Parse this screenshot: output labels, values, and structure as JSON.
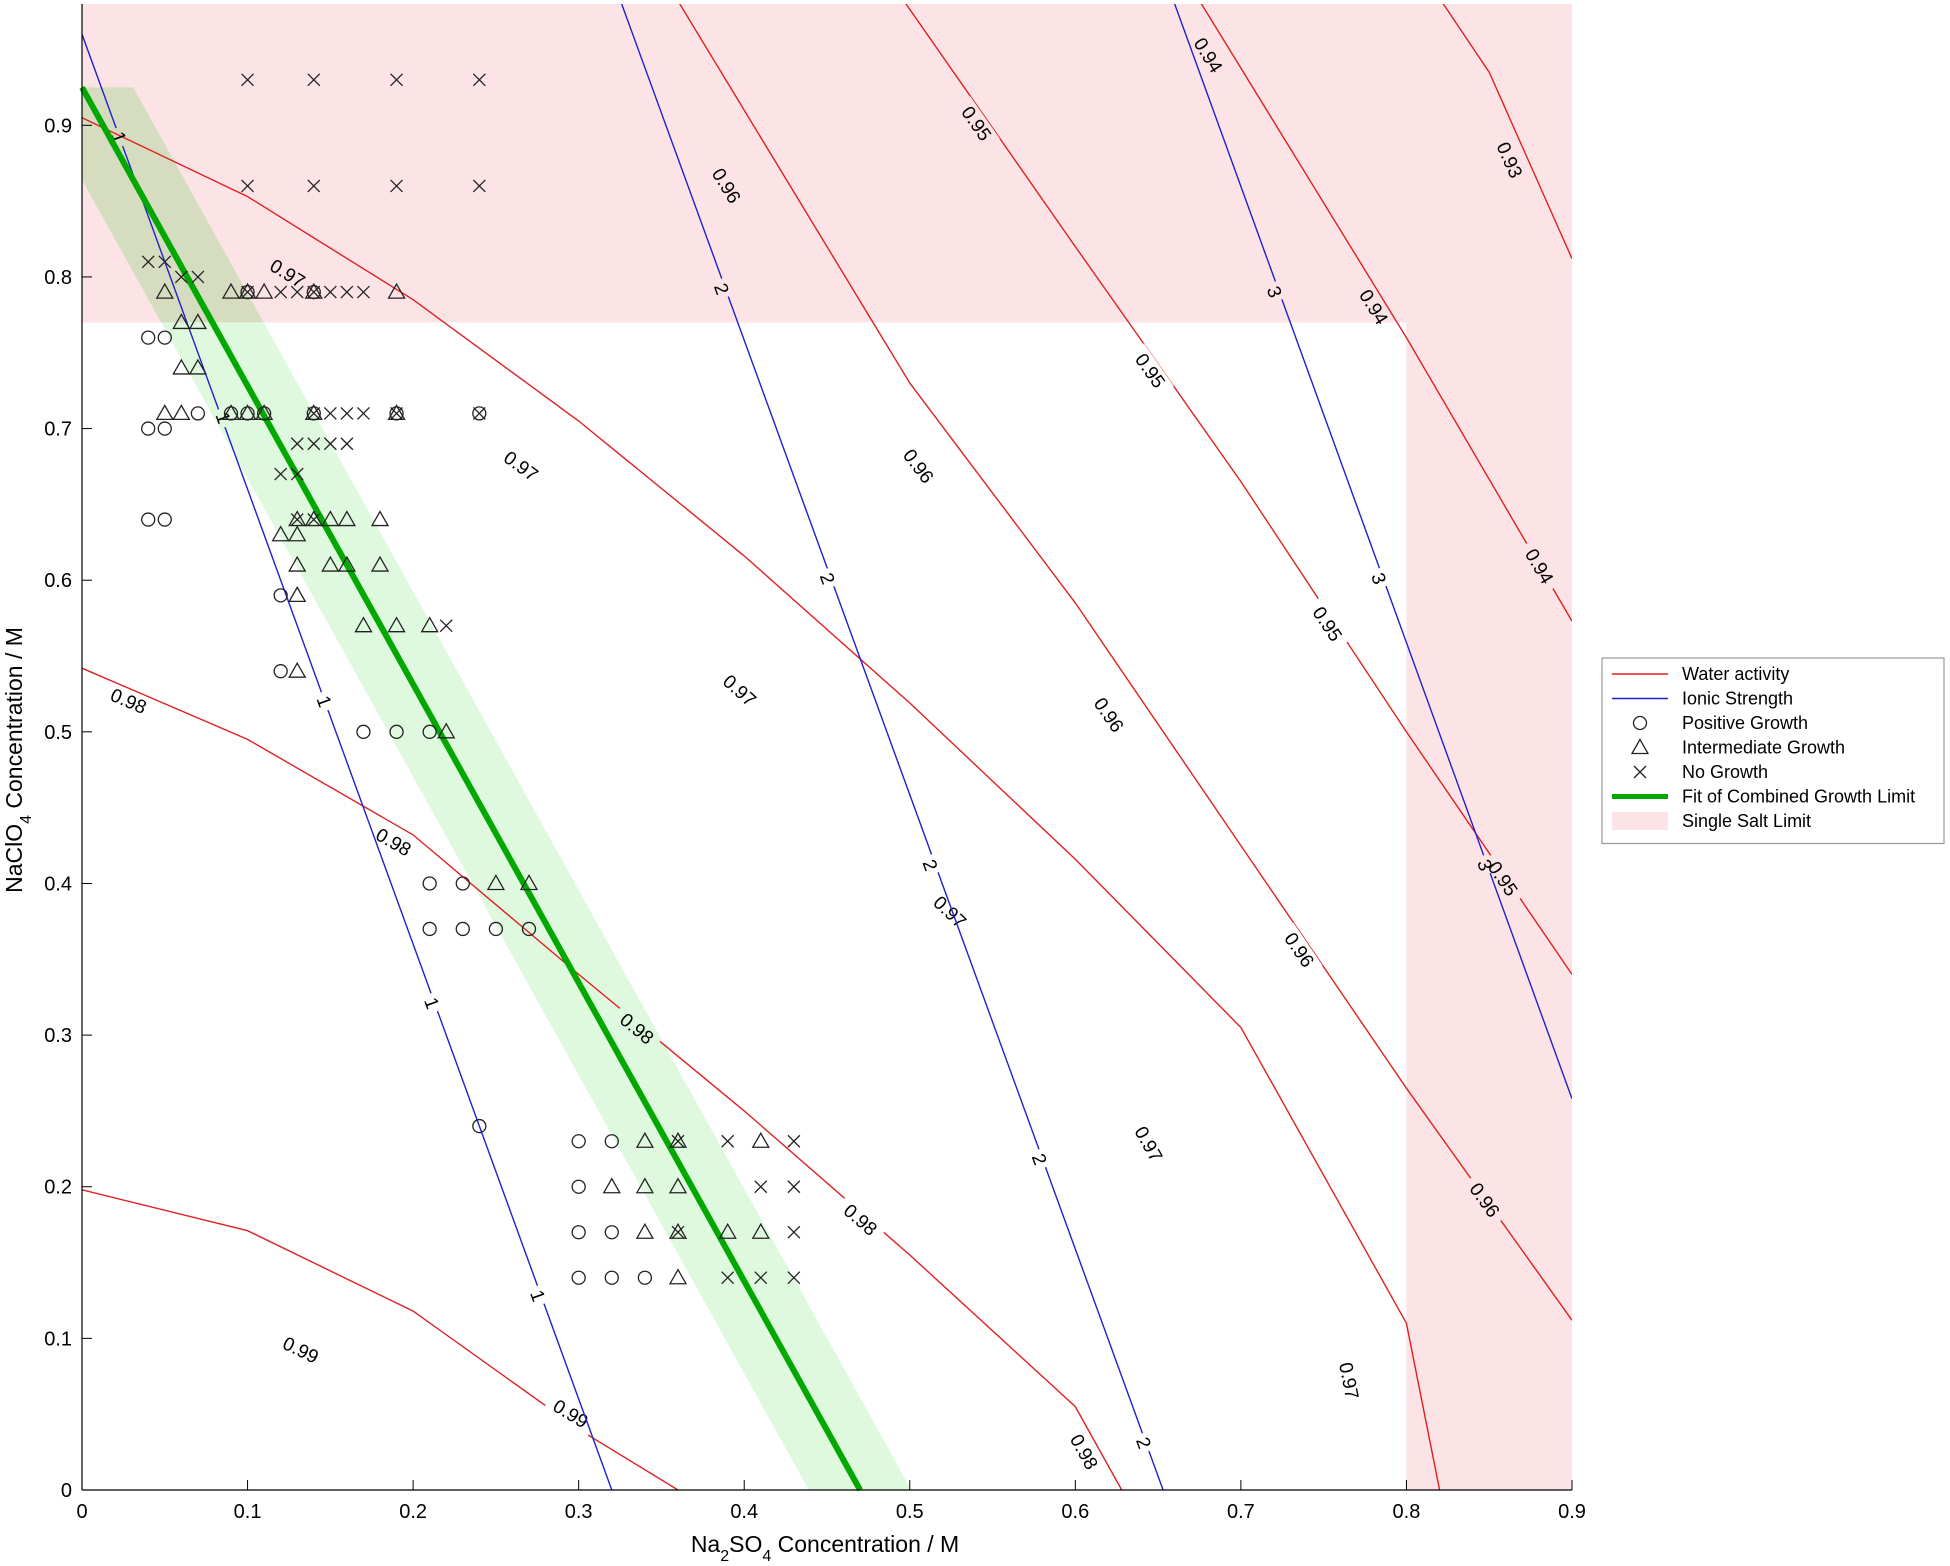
{
  "chart_data": {
    "type": "scatter",
    "xlabel": {
      "pre": "Na",
      "sub1": "2",
      "mid": "SO",
      "sub2": "4",
      "post": " Concentration / M"
    },
    "ylabel": {
      "pre": "NaClO",
      "sub": "4",
      "post": " Concentration / M"
    },
    "xlim": [
      0,
      0.9
    ],
    "ylim": [
      0,
      0.98
    ],
    "xticks": [
      0,
      0.1,
      0.2,
      0.3,
      0.4,
      0.5,
      0.6,
      0.7,
      0.8,
      0.9
    ],
    "xtick_labels": [
      "0",
      "0.1",
      "0.2",
      "0.3",
      "0.4",
      "0.5",
      "0.6",
      "0.7",
      "0.8",
      "0.9"
    ],
    "yticks": [
      0,
      0.1,
      0.2,
      0.3,
      0.4,
      0.5,
      0.6,
      0.7,
      0.8,
      0.9
    ],
    "ytick_labels": [
      "0",
      "0.1",
      "0.2",
      "0.3",
      "0.4",
      "0.5",
      "0.6",
      "0.7",
      "0.8",
      "0.9"
    ],
    "grid": false,
    "legend_position": "right, outside axes",
    "colors": {
      "water_activity": "#e02020",
      "ionic_strength": "#2020d0",
      "fit": "#00a800",
      "fit_band": "#dff9df",
      "single_salt": "#fce4e6",
      "overlap": "#d6dcc0",
      "marker": "#222222"
    },
    "single_salt_limit": {
      "nacl_o4_limit_y": 0.77,
      "na2so4_limit_x": 0.8
    },
    "fit": {
      "x": [
        0,
        0.47
      ],
      "y": [
        0.925,
        0
      ],
      "band_halfwidth_x": 0.031
    },
    "water_activity_contours": [
      {
        "level": "0.99",
        "points": [
          [
            0,
            0.198
          ],
          [
            0.1,
            0.171
          ],
          [
            0.2,
            0.118
          ],
          [
            0.3,
            0.04
          ],
          [
            0.36,
            0
          ]
        ],
        "labels": [
          {
            "x": 0.132,
            "y": 0.092,
            "text": "0.99"
          },
          {
            "x": 0.295,
            "y": 0.05,
            "text": "0.99"
          }
        ]
      },
      {
        "level": "0.98",
        "points": [
          [
            0,
            0.542
          ],
          [
            0.1,
            0.495
          ],
          [
            0.2,
            0.432
          ],
          [
            0.3,
            0.34
          ],
          [
            0.4,
            0.25
          ],
          [
            0.5,
            0.155
          ],
          [
            0.6,
            0.055
          ],
          [
            0.628,
            0
          ]
        ],
        "labels": [
          {
            "x": 0.028,
            "y": 0.52,
            "text": "0.98"
          },
          {
            "x": 0.188,
            "y": 0.427,
            "text": "0.98"
          },
          {
            "x": 0.335,
            "y": 0.304,
            "text": "0.98"
          },
          {
            "x": 0.47,
            "y": 0.178,
            "text": "0.98"
          },
          {
            "x": 0.605,
            "y": 0.025,
            "text": "0.98"
          }
        ]
      },
      {
        "level": "0.97",
        "points": [
          [
            0,
            0.905
          ],
          [
            0.1,
            0.853
          ],
          [
            0.2,
            0.785
          ],
          [
            0.3,
            0.705
          ],
          [
            0.4,
            0.616
          ],
          [
            0.5,
            0.519
          ],
          [
            0.6,
            0.416
          ],
          [
            0.7,
            0.305
          ],
          [
            0.8,
            0.11
          ],
          [
            0.82,
            0
          ]
        ],
        "labels": [
          {
            "x": 0.124,
            "y": 0.802,
            "text": "0.97"
          },
          {
            "x": 0.265,
            "y": 0.675,
            "text": "0.97"
          },
          {
            "x": 0.397,
            "y": 0.527,
            "text": "0.97"
          },
          {
            "x": 0.524,
            "y": 0.381,
            "text": "0.97"
          },
          {
            "x": 0.644,
            "y": 0.228,
            "text": "0.97"
          },
          {
            "x": 0.765,
            "y": 0.072,
            "text": "0.97"
          }
        ]
      },
      {
        "level": "0.96",
        "points": [
          [
            0.35,
            1.0
          ],
          [
            0.5,
            0.73
          ],
          [
            0.6,
            0.585
          ],
          [
            0.7,
            0.425
          ],
          [
            0.8,
            0.265
          ],
          [
            0.9,
            0.112
          ]
        ],
        "labels": [
          {
            "x": 0.389,
            "y": 0.86,
            "text": "0.96"
          },
          {
            "x": 0.505,
            "y": 0.675,
            "text": "0.96"
          },
          {
            "x": 0.62,
            "y": 0.511,
            "text": "0.96"
          },
          {
            "x": 0.735,
            "y": 0.356,
            "text": "0.96"
          },
          {
            "x": 0.847,
            "y": 0.191,
            "text": "0.96"
          }
        ]
      },
      {
        "level": "0.95",
        "points": [
          [
            0.485,
            1.0
          ],
          [
            0.6,
            0.82
          ],
          [
            0.7,
            0.665
          ],
          [
            0.8,
            0.5
          ],
          [
            0.9,
            0.34
          ]
        ],
        "labels": [
          {
            "x": 0.54,
            "y": 0.901,
            "text": "0.95"
          },
          {
            "x": 0.645,
            "y": 0.738,
            "text": "0.95"
          },
          {
            "x": 0.752,
            "y": 0.571,
            "text": "0.95"
          },
          {
            "x": 0.858,
            "y": 0.403,
            "text": "0.95"
          }
        ]
      },
      {
        "level": "0.94",
        "points": [
          [
            0.665,
            1.0
          ],
          [
            0.8,
            0.76
          ],
          [
            0.9,
            0.573
          ]
        ],
        "labels": [
          {
            "x": 0.68,
            "y": 0.946,
            "text": "0.94"
          },
          {
            "x": 0.78,
            "y": 0.78,
            "text": "0.94"
          },
          {
            "x": 0.88,
            "y": 0.609,
            "text": "0.94"
          }
        ]
      },
      {
        "level": "0.93",
        "points": [
          [
            0.81,
            1.0
          ],
          [
            0.85,
            0.935
          ],
          [
            0.9,
            0.812
          ]
        ],
        "labels": [
          {
            "x": 0.862,
            "y": 0.877,
            "text": "0.93"
          }
        ]
      }
    ],
    "ionic_strength_contours": [
      {
        "level": "1",
        "points": [
          [
            0,
            0.96
          ],
          [
            0.32,
            0
          ]
        ],
        "labels": [
          {
            "x": 0.022,
            "y": 0.892,
            "text": "1"
          },
          {
            "x": 0.085,
            "y": 0.707,
            "text": "1"
          },
          {
            "x": 0.146,
            "y": 0.52,
            "text": "1"
          },
          {
            "x": 0.211,
            "y": 0.321,
            "text": "1"
          },
          {
            "x": 0.275,
            "y": 0.128,
            "text": "1"
          }
        ]
      },
      {
        "level": "2",
        "points": [
          [
            0.326,
            0.98
          ],
          [
            0.653,
            0
          ]
        ],
        "labels": [
          {
            "x": 0.386,
            "y": 0.792,
            "text": "2"
          },
          {
            "x": 0.45,
            "y": 0.601,
            "text": "2"
          },
          {
            "x": 0.512,
            "y": 0.412,
            "text": "2"
          },
          {
            "x": 0.578,
            "y": 0.218,
            "text": "2"
          },
          {
            "x": 0.641,
            "y": 0.031,
            "text": "2"
          }
        ]
      },
      {
        "level": "3",
        "points": [
          [
            0.66,
            0.98
          ],
          [
            0.9,
            0.258
          ]
        ],
        "labels": [
          {
            "x": 0.72,
            "y": 0.79,
            "text": "3"
          },
          {
            "x": 0.783,
            "y": 0.601,
            "text": "3"
          },
          {
            "x": 0.847,
            "y": 0.412,
            "text": "3"
          }
        ]
      }
    ],
    "series": [
      {
        "name": "Positive Growth",
        "marker": "circle",
        "points": [
          [
            0.04,
            0.76
          ],
          [
            0.05,
            0.76
          ],
          [
            0.04,
            0.7
          ],
          [
            0.05,
            0.7
          ],
          [
            0.07,
            0.71
          ],
          [
            0.04,
            0.64
          ],
          [
            0.05,
            0.64
          ],
          [
            0.09,
            0.71
          ],
          [
            0.1,
            0.71
          ],
          [
            0.11,
            0.71
          ],
          [
            0.1,
            0.79
          ],
          [
            0.14,
            0.79
          ],
          [
            0.14,
            0.71
          ],
          [
            0.19,
            0.71
          ],
          [
            0.24,
            0.71
          ],
          [
            0.12,
            0.59
          ],
          [
            0.12,
            0.54
          ],
          [
            0.17,
            0.5
          ],
          [
            0.19,
            0.5
          ],
          [
            0.21,
            0.5
          ],
          [
            0.21,
            0.4
          ],
          [
            0.23,
            0.4
          ],
          [
            0.21,
            0.37
          ],
          [
            0.23,
            0.37
          ],
          [
            0.25,
            0.37
          ],
          [
            0.27,
            0.37
          ],
          [
            0.24,
            0.24
          ],
          [
            0.3,
            0.23
          ],
          [
            0.32,
            0.23
          ],
          [
            0.3,
            0.2
          ],
          [
            0.3,
            0.17
          ],
          [
            0.32,
            0.17
          ],
          [
            0.3,
            0.14
          ],
          [
            0.32,
            0.14
          ],
          [
            0.34,
            0.14
          ]
        ]
      },
      {
        "name": "Intermediate Growth",
        "marker": "triangle",
        "points": [
          [
            0.05,
            0.79
          ],
          [
            0.09,
            0.79
          ],
          [
            0.1,
            0.79
          ],
          [
            0.11,
            0.79
          ],
          [
            0.14,
            0.79
          ],
          [
            0.19,
            0.79
          ],
          [
            0.06,
            0.77
          ],
          [
            0.07,
            0.77
          ],
          [
            0.06,
            0.74
          ],
          [
            0.07,
            0.74
          ],
          [
            0.05,
            0.71
          ],
          [
            0.06,
            0.71
          ],
          [
            0.09,
            0.71
          ],
          [
            0.1,
            0.71
          ],
          [
            0.11,
            0.71
          ],
          [
            0.14,
            0.71
          ],
          [
            0.19,
            0.71
          ],
          [
            0.13,
            0.64
          ],
          [
            0.14,
            0.64
          ],
          [
            0.15,
            0.64
          ],
          [
            0.16,
            0.64
          ],
          [
            0.18,
            0.64
          ],
          [
            0.12,
            0.63
          ],
          [
            0.13,
            0.63
          ],
          [
            0.13,
            0.61
          ],
          [
            0.15,
            0.61
          ],
          [
            0.16,
            0.61
          ],
          [
            0.18,
            0.61
          ],
          [
            0.13,
            0.59
          ],
          [
            0.17,
            0.57
          ],
          [
            0.19,
            0.57
          ],
          [
            0.21,
            0.57
          ],
          [
            0.13,
            0.54
          ],
          [
            0.22,
            0.5
          ],
          [
            0.25,
            0.4
          ],
          [
            0.27,
            0.4
          ],
          [
            0.34,
            0.23
          ],
          [
            0.36,
            0.23
          ],
          [
            0.41,
            0.23
          ],
          [
            0.32,
            0.2
          ],
          [
            0.34,
            0.2
          ],
          [
            0.36,
            0.2
          ],
          [
            0.34,
            0.17
          ],
          [
            0.36,
            0.17
          ],
          [
            0.39,
            0.17
          ],
          [
            0.41,
            0.17
          ],
          [
            0.36,
            0.14
          ]
        ]
      },
      {
        "name": "No Growth",
        "marker": "x",
        "points": [
          [
            0.1,
            0.93
          ],
          [
            0.14,
            0.93
          ],
          [
            0.19,
            0.93
          ],
          [
            0.24,
            0.93
          ],
          [
            0.1,
            0.86
          ],
          [
            0.14,
            0.86
          ],
          [
            0.19,
            0.86
          ],
          [
            0.24,
            0.86
          ],
          [
            0.04,
            0.81
          ],
          [
            0.05,
            0.81
          ],
          [
            0.06,
            0.8
          ],
          [
            0.07,
            0.8
          ],
          [
            0.1,
            0.79
          ],
          [
            0.12,
            0.79
          ],
          [
            0.13,
            0.79
          ],
          [
            0.14,
            0.79
          ],
          [
            0.15,
            0.79
          ],
          [
            0.16,
            0.79
          ],
          [
            0.17,
            0.79
          ],
          [
            0.14,
            0.71
          ],
          [
            0.15,
            0.71
          ],
          [
            0.16,
            0.71
          ],
          [
            0.17,
            0.71
          ],
          [
            0.19,
            0.71
          ],
          [
            0.24,
            0.71
          ],
          [
            0.13,
            0.69
          ],
          [
            0.14,
            0.69
          ],
          [
            0.15,
            0.69
          ],
          [
            0.16,
            0.69
          ],
          [
            0.12,
            0.67
          ],
          [
            0.13,
            0.67
          ],
          [
            0.13,
            0.64
          ],
          [
            0.14,
            0.64
          ],
          [
            0.22,
            0.57
          ],
          [
            0.36,
            0.23
          ],
          [
            0.39,
            0.23
          ],
          [
            0.43,
            0.23
          ],
          [
            0.41,
            0.2
          ],
          [
            0.43,
            0.2
          ],
          [
            0.36,
            0.17
          ],
          [
            0.43,
            0.17
          ],
          [
            0.39,
            0.14
          ],
          [
            0.41,
            0.14
          ],
          [
            0.43,
            0.14
          ]
        ]
      }
    ],
    "legend": [
      {
        "label": "Water activity",
        "kind": "line-thin-red"
      },
      {
        "label": "Ionic Strength",
        "kind": "line-thin-blue"
      },
      {
        "label": "Positive Growth",
        "kind": "circle"
      },
      {
        "label": "Intermediate Growth",
        "kind": "triangle"
      },
      {
        "label": "No Growth",
        "kind": "x"
      },
      {
        "label": "Fit of Combined Growth Limit",
        "kind": "line-thick-green"
      },
      {
        "label": "Single Salt Limit",
        "kind": "patch-pink"
      }
    ]
  }
}
